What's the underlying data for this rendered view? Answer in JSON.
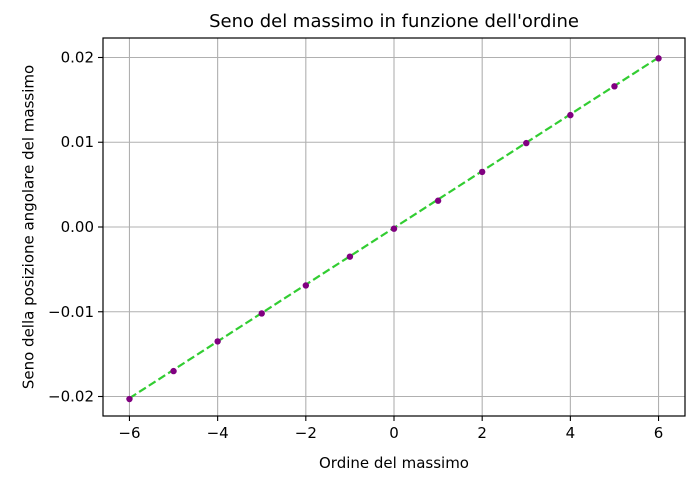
{
  "chart_data": {
    "type": "scatter",
    "title": "Seno del massimo in funzione dell'ordine",
    "xlabel": "Ordine del massimo",
    "ylabel": "Seno della posizione angolare del massimo",
    "xlim": [
      -6.6,
      6.6
    ],
    "ylim": [
      -0.0223,
      0.0223
    ],
    "grid": true,
    "x_ticks": [
      -6,
      -4,
      -2,
      0,
      2,
      4,
      6
    ],
    "x_tick_labels": [
      "−6",
      "−4",
      "−2",
      "0",
      "2",
      "4",
      "6"
    ],
    "y_ticks": [
      -0.02,
      -0.01,
      0.0,
      0.01,
      0.02
    ],
    "y_tick_labels": [
      "−0.02",
      "−0.01",
      "0.00",
      "0.01",
      "0.02"
    ],
    "series": [
      {
        "type": "scatter",
        "x": [
          -6,
          -5,
          -4,
          -3,
          -2,
          -1,
          0,
          1,
          2,
          3,
          4,
          5,
          6
        ],
        "y": [
          -0.0203,
          -0.017,
          -0.0135,
          -0.0102,
          -0.0069,
          -0.0035,
          -0.0002,
          0.0031,
          0.0065,
          0.0099,
          0.0132,
          0.0166,
          0.0199
        ],
        "color": "#800080"
      },
      {
        "type": "line",
        "style": "dashed",
        "x": [
          -6,
          6
        ],
        "y": [
          -0.0202,
          0.02
        ],
        "color": "#32cd32"
      }
    ]
  }
}
